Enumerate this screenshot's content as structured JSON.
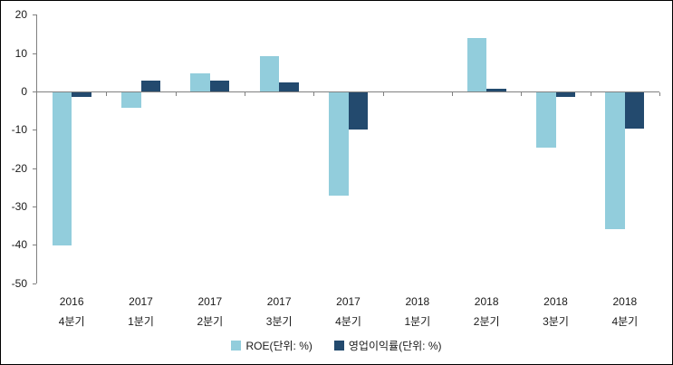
{
  "chart_data": {
    "type": "bar",
    "title": "",
    "categories": [
      [
        "2016",
        "4분기"
      ],
      [
        "2017",
        "1분기"
      ],
      [
        "2017",
        "2분기"
      ],
      [
        "2017",
        "3분기"
      ],
      [
        "2017",
        "4분기"
      ],
      [
        "2018",
        "1분기"
      ],
      [
        "2018",
        "2분기"
      ],
      [
        "2018",
        "3분기"
      ],
      [
        "2018",
        "4분기"
      ]
    ],
    "series": [
      {
        "name": "ROE(단위: %)",
        "color": "#92CDDC",
        "values": [
          -39.8,
          -3.9,
          4.8,
          9.3,
          -27.0,
          0,
          14.0,
          -14.4,
          -35.6
        ]
      },
      {
        "name": "영업이익률(단위: %)",
        "color": "#234A6E",
        "values": [
          -1.2,
          2.8,
          2.9,
          2.4,
          -9.8,
          0,
          0.8,
          -1.2,
          -9.4
        ]
      }
    ],
    "xlabel": "",
    "ylabel": "",
    "ylim": [
      -50,
      20
    ],
    "y_ticks": [
      20,
      10,
      0,
      -10,
      -20,
      -30,
      -40,
      -50
    ],
    "grid": false,
    "legend_position": "bottom",
    "axis_color": "#808080",
    "text_color": "#1A1A1A",
    "background": "#FFFFFF",
    "border_color": "#000000"
  }
}
